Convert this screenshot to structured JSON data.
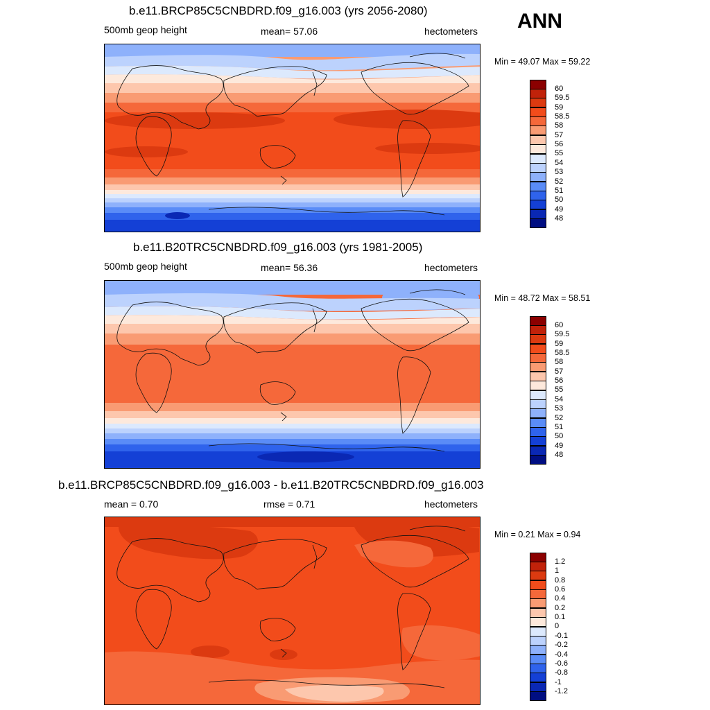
{
  "season": "ANN",
  "units": "hectometers",
  "panels": [
    {
      "id": "test",
      "title": "b.e11.BRCP85C5CNBDRD.f09_g16.003 (yrs 2056-2080)",
      "left_label": "500mb geop height",
      "center_label": "mean=  57.06",
      "right_label": "hectometers",
      "minmax": "Min =  49.07 Max =  59.22",
      "colorbar": {
        "labels": [
          "60",
          "59.5",
          "59",
          "58.5",
          "58",
          "57",
          "56",
          "55",
          "54",
          "53",
          "52",
          "51",
          "50",
          "49",
          "48"
        ],
        "colors": [
          "#8b0000",
          "#c1220a",
          "#dc3a10",
          "#f24c1b",
          "#f5683a",
          "#f99b73",
          "#fdc7ad",
          "#fde9dc",
          "#dce9fd",
          "#bcd2fd",
          "#8eb1fb",
          "#5a8cf7",
          "#2f63ec",
          "#1440d6",
          "#0a28b4",
          "#000e82"
        ]
      }
    },
    {
      "id": "control",
      "title": "b.e11.B20TRC5CNBDRD.f09_g16.003 (yrs 1981-2005)",
      "left_label": "500mb geop height",
      "center_label": "mean=  56.36",
      "right_label": "hectometers",
      "minmax": "Min =  48.72 Max =  58.51",
      "colorbar": {
        "labels": [
          "60",
          "59.5",
          "59",
          "58.5",
          "58",
          "57",
          "56",
          "55",
          "54",
          "53",
          "52",
          "51",
          "50",
          "49",
          "48"
        ],
        "colors": [
          "#8b0000",
          "#c1220a",
          "#dc3a10",
          "#f24c1b",
          "#f5683a",
          "#f99b73",
          "#fdc7ad",
          "#fde9dc",
          "#dce9fd",
          "#bcd2fd",
          "#8eb1fb",
          "#5a8cf7",
          "#2f63ec",
          "#1440d6",
          "#0a28b4",
          "#000e82"
        ]
      }
    },
    {
      "id": "difference",
      "title": "b.e11.BRCP85C5CNBDRD.f09_g16.003 - b.e11.B20TRC5CNBDRD.f09_g16.003",
      "left_label": "mean =   0.70",
      "center_label": "rmse =   0.71",
      "right_label": "hectometers",
      "minmax": "Min =   0.21 Max =   0.94",
      "colorbar": {
        "labels": [
          "1.2",
          "1",
          "0.8",
          "0.6",
          "0.4",
          "0.2",
          "0.1",
          "0",
          "-0.1",
          "-0.2",
          "-0.4",
          "-0.6",
          "-0.8",
          "-1",
          "-1.2"
        ],
        "colors": [
          "#8b0000",
          "#c1220a",
          "#dc3a10",
          "#f24c1b",
          "#f5683a",
          "#f99b73",
          "#fdc7ad",
          "#fde9dc",
          "#dce9fd",
          "#bcd2fd",
          "#8eb1fb",
          "#5a8cf7",
          "#2f63ec",
          "#1440d6",
          "#0a28b4",
          "#000e82"
        ]
      }
    }
  ]
}
